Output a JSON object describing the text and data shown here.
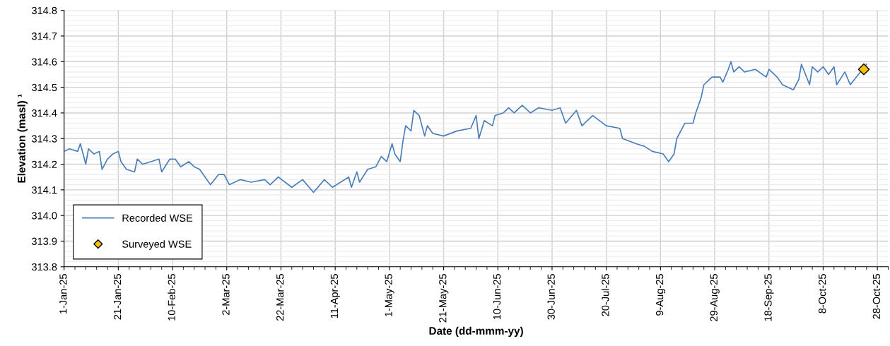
{
  "chart_data": {
    "type": "line",
    "xlabel": "Date (dd-mmm-yy)",
    "ylabel": "Elevation (masl) ¹",
    "xlim": [
      "2025-01-01",
      "2025-11-01"
    ],
    "ylim": [
      313.8,
      314.8
    ],
    "yticks": [
      {
        "value": 313.8,
        "label": "313.8"
      },
      {
        "value": 313.9,
        "label": "313.9"
      },
      {
        "value": 314.0,
        "label": "314.0"
      },
      {
        "value": 314.1,
        "label": "314.1"
      },
      {
        "value": 314.2,
        "label": "314.2"
      },
      {
        "value": 314.3,
        "label": "314.3"
      },
      {
        "value": 314.4,
        "label": "314.4"
      },
      {
        "value": 314.5,
        "label": "314.5"
      },
      {
        "value": 314.6,
        "label": "314.6"
      },
      {
        "value": 314.7,
        "label": "314.7"
      },
      {
        "value": 314.8,
        "label": "314.8"
      }
    ],
    "xticks": [
      {
        "value": "2025-01-01",
        "label": "1-Jan-25"
      },
      {
        "value": "2025-01-21",
        "label": "21-Jan-25"
      },
      {
        "value": "2025-02-10",
        "label": "10-Feb-25"
      },
      {
        "value": "2025-03-02",
        "label": "2-Mar-25"
      },
      {
        "value": "2025-03-22",
        "label": "22-Mar-25"
      },
      {
        "value": "2025-04-11",
        "label": "11-Apr-25"
      },
      {
        "value": "2025-05-01",
        "label": "1-May-25"
      },
      {
        "value": "2025-05-21",
        "label": "21-May-25"
      },
      {
        "value": "2025-06-10",
        "label": "10-Jun-25"
      },
      {
        "value": "2025-06-30",
        "label": "30-Jun-25"
      },
      {
        "value": "2025-07-20",
        "label": "20-Jul-25"
      },
      {
        "value": "2025-08-09",
        "label": "9-Aug-25"
      },
      {
        "value": "2025-08-29",
        "label": "29-Aug-25"
      },
      {
        "value": "2025-09-18",
        "label": "18-Sep-25"
      },
      {
        "value": "2025-10-08",
        "label": "8-Oct-25"
      },
      {
        "value": "2025-10-28",
        "label": "28-Oct-25"
      }
    ],
    "grid": true,
    "legend": "bottom left",
    "series": [
      {
        "name": "Recorded WSE",
        "color": "#4a7ebb",
        "marker": "none",
        "line_style": "solid",
        "x": [
          "2025-01-01",
          "2025-01-03",
          "2025-01-06",
          "2025-01-07",
          "2025-01-09",
          "2025-01-10",
          "2025-01-12",
          "2025-01-14",
          "2025-01-15",
          "2025-01-17",
          "2025-01-19",
          "2025-01-21",
          "2025-01-22",
          "2025-01-24",
          "2025-01-27",
          "2025-01-28",
          "2025-01-30",
          "2025-02-02",
          "2025-02-05",
          "2025-02-06",
          "2025-02-09",
          "2025-02-11",
          "2025-02-13",
          "2025-02-16",
          "2025-02-18",
          "2025-02-20",
          "2025-02-22",
          "2025-02-24",
          "2025-02-27",
          "2025-03-01",
          "2025-03-03",
          "2025-03-07",
          "2025-03-11",
          "2025-03-16",
          "2025-03-18",
          "2025-03-21",
          "2025-03-26",
          "2025-03-30",
          "2025-04-03",
          "2025-04-07",
          "2025-04-10",
          "2025-04-16",
          "2025-04-17",
          "2025-04-19",
          "2025-04-20",
          "2025-04-23",
          "2025-04-26",
          "2025-04-28",
          "2025-04-30",
          "2025-05-02",
          "2025-05-03",
          "2025-05-05",
          "2025-05-06",
          "2025-05-07",
          "2025-05-09",
          "2025-05-10",
          "2025-05-12",
          "2025-05-14",
          "2025-05-15",
          "2025-05-17",
          "2025-05-21",
          "2025-05-26",
          "2025-05-31",
          "2025-06-02",
          "2025-06-03",
          "2025-06-05",
          "2025-06-08",
          "2025-06-09",
          "2025-06-12",
          "2025-06-14",
          "2025-06-16",
          "2025-06-19",
          "2025-06-22",
          "2025-06-25",
          "2025-06-30",
          "2025-07-03",
          "2025-07-05",
          "2025-07-09",
          "2025-07-11",
          "2025-07-15",
          "2025-07-20",
          "2025-07-25",
          "2025-07-26",
          "2025-07-31",
          "2025-08-03",
          "2025-08-06",
          "2025-08-10",
          "2025-08-12",
          "2025-08-14",
          "2025-08-15",
          "2025-08-18",
          "2025-08-21",
          "2025-08-22",
          "2025-08-24",
          "2025-08-25",
          "2025-08-28",
          "2025-08-31",
          "2025-09-01",
          "2025-09-03",
          "2025-09-04",
          "2025-09-05",
          "2025-09-07",
          "2025-09-09",
          "2025-09-13",
          "2025-09-17",
          "2025-09-18",
          "2025-09-21",
          "2025-09-23",
          "2025-09-27",
          "2025-09-29",
          "2025-09-30",
          "2025-10-03",
          "2025-10-04",
          "2025-10-06",
          "2025-10-08",
          "2025-10-10",
          "2025-10-12",
          "2025-10-13",
          "2025-10-16",
          "2025-10-18",
          "2025-10-21",
          "2025-10-24"
        ],
        "values": [
          314.25,
          314.26,
          314.25,
          314.28,
          314.2,
          314.26,
          314.24,
          314.25,
          314.18,
          314.22,
          314.24,
          314.25,
          314.21,
          314.18,
          314.17,
          314.22,
          314.2,
          314.21,
          314.22,
          314.17,
          314.22,
          314.22,
          314.19,
          314.21,
          314.19,
          314.18,
          314.15,
          314.12,
          314.16,
          314.16,
          314.12,
          314.14,
          314.13,
          314.14,
          314.12,
          314.15,
          314.11,
          314.14,
          314.09,
          314.14,
          314.11,
          314.15,
          314.11,
          314.17,
          314.13,
          314.18,
          314.19,
          314.23,
          314.21,
          314.28,
          314.24,
          314.21,
          314.29,
          314.35,
          314.33,
          314.41,
          314.39,
          314.31,
          314.35,
          314.32,
          314.31,
          314.33,
          314.34,
          314.39,
          314.3,
          314.37,
          314.35,
          314.39,
          314.4,
          314.42,
          314.4,
          314.43,
          314.4,
          314.42,
          314.41,
          314.42,
          314.36,
          314.41,
          314.35,
          314.39,
          314.35,
          314.34,
          314.3,
          314.28,
          314.27,
          314.25,
          314.24,
          314.21,
          314.24,
          314.3,
          314.36,
          314.36,
          314.4,
          314.46,
          314.51,
          314.54,
          314.54,
          314.52,
          314.57,
          314.6,
          314.56,
          314.58,
          314.56,
          314.57,
          314.54,
          314.57,
          314.54,
          314.51,
          314.49,
          314.53,
          314.59,
          314.51,
          314.58,
          314.56,
          314.58,
          314.55,
          314.58,
          314.51,
          314.56,
          314.51,
          314.55,
          314.59
        ]
      },
      {
        "name": "Surveyed WSE",
        "type": "scatter",
        "color": "#ffc000",
        "marker": "diamond",
        "x": [
          "2025-10-23"
        ],
        "values": [
          314.57
        ]
      }
    ]
  }
}
